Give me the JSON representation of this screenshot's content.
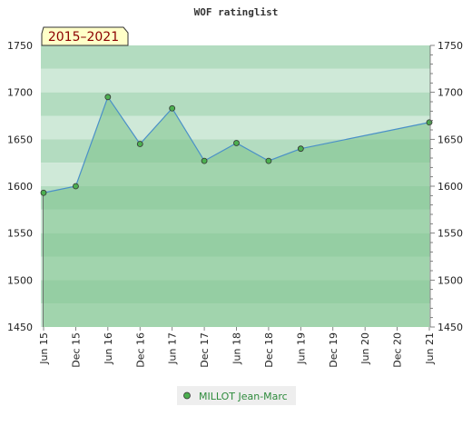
{
  "chart_data": {
    "type": "area",
    "title": "WOF ratinglist",
    "period_label": "2015–2021",
    "xlabel": "",
    "ylabel": "",
    "ylim": [
      1450,
      1750
    ],
    "y_ticks": [
      1450,
      1500,
      1550,
      1600,
      1650,
      1700,
      1750
    ],
    "x_ticks": [
      "Jun 15",
      "Dec 15",
      "Jun 16",
      "Dec 16",
      "Jun 17",
      "Dec 17",
      "Jun 18",
      "Dec 18",
      "Jun 19",
      "Dec 19",
      "Jun 20",
      "Dec 20",
      "Jun 21"
    ],
    "series": [
      {
        "name": "MILLOT Jean-Marc",
        "points": [
          {
            "x": "Jun 15",
            "y": 1593
          },
          {
            "x": "Dec 15",
            "y": 1600
          },
          {
            "x": "Jun 16",
            "y": 1695
          },
          {
            "x": "Dec 16",
            "y": 1645
          },
          {
            "x": "Jun 17",
            "y": 1683
          },
          {
            "x": "Dec 17",
            "y": 1627
          },
          {
            "x": "Jun 18",
            "y": 1646
          },
          {
            "x": "Dec 18",
            "y": 1627
          },
          {
            "x": "Jun 19",
            "y": 1640
          },
          {
            "x": "Jun 21",
            "y": 1668
          }
        ]
      }
    ],
    "colors": {
      "line": "#4a90c8",
      "marker": "#4caf50",
      "fill": "#7cc28a",
      "band_dark": "#b3dcc0",
      "band_light": "#cfe9d8",
      "legend_text": "#2e8b3c",
      "badge_bg": "#ffffc8",
      "badge_text": "#8b0000"
    },
    "legend": {
      "placement": "bottom-center"
    }
  }
}
